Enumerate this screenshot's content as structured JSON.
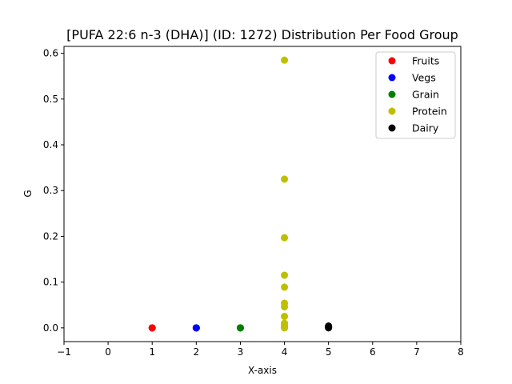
{
  "chart_data": {
    "type": "scatter",
    "title": "[PUFA 22:6 n-3 (DHA)] (ID: 1272) Distribution Per Food Group",
    "xlabel": "X-axis",
    "ylabel": "G",
    "xlim": [
      -1,
      8
    ],
    "ylim": [
      -0.03,
      0.615
    ],
    "xticks": [
      -1,
      0,
      1,
      2,
      3,
      4,
      5,
      6,
      7,
      8
    ],
    "yticks": [
      0.0,
      0.1,
      0.2,
      0.3,
      0.4,
      0.5,
      0.6
    ],
    "ytick_labels": [
      "0.0",
      "0.1",
      "0.2",
      "0.3",
      "0.4",
      "0.5",
      "0.6"
    ],
    "grid": false,
    "legend_position": "top-right",
    "series": [
      {
        "name": "Fruits",
        "color": "#ff0000",
        "x": [
          1,
          1,
          1
        ],
        "y": [
          0.0,
          0.0,
          0.0
        ]
      },
      {
        "name": "Vegs",
        "color": "#0000ff",
        "x": [
          2,
          2,
          2
        ],
        "y": [
          0.0,
          0.0,
          0.0
        ]
      },
      {
        "name": "Grain",
        "color": "#008000",
        "x": [
          3,
          3,
          3
        ],
        "y": [
          0.0,
          0.0,
          0.0
        ]
      },
      {
        "name": "Protein",
        "color": "#bfbf00",
        "x": [
          4,
          4,
          4,
          4,
          4,
          4,
          4,
          4,
          4,
          4,
          4,
          4,
          4
        ],
        "y": [
          0.585,
          0.325,
          0.197,
          0.115,
          0.089,
          0.054,
          0.046,
          0.025,
          0.01,
          0.005,
          0.002,
          0.001,
          0.0
        ]
      },
      {
        "name": "Dairy",
        "color": "#000000",
        "x": [
          5,
          5,
          5,
          5
        ],
        "y": [
          0.004,
          0.002,
          0.001,
          0.0
        ]
      }
    ]
  }
}
